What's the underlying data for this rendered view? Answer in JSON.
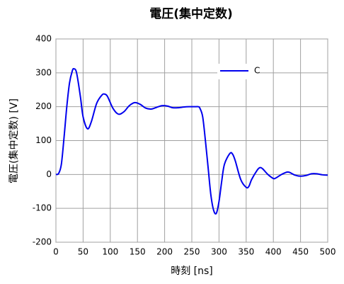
{
  "chart_data": {
    "type": "line",
    "title": "電圧(集中定数)",
    "x_label": "時刻 [ns]",
    "y_label": "電圧(集中定数) [V]",
    "x": [
      0,
      5,
      10,
      15,
      20,
      25,
      30,
      33,
      38,
      45,
      50,
      58,
      65,
      75,
      85,
      90,
      95,
      105,
      115,
      125,
      135,
      145,
      155,
      165,
      175,
      185,
      195,
      205,
      215,
      225,
      235,
      245,
      255,
      262,
      265,
      270,
      275,
      280,
      285,
      290,
      295,
      300,
      305,
      310,
      320,
      325,
      330,
      340,
      350,
      355,
      360,
      370,
      375,
      380,
      390,
      400,
      405,
      415,
      425,
      430,
      440,
      450,
      460,
      470,
      480,
      490,
      500
    ],
    "series": [
      {
        "name": "C",
        "color": "#0000ee",
        "values": [
          0,
          3,
          30,
          110,
          200,
          270,
          305,
          312,
          300,
          230,
          170,
          135,
          155,
          210,
          235,
          237,
          230,
          195,
          178,
          185,
          203,
          212,
          207,
          196,
          193,
          198,
          203,
          202,
          197,
          197,
          199,
          200,
          200,
          200,
          195,
          170,
          100,
          20,
          -60,
          -105,
          -115,
          -80,
          -20,
          30,
          62,
          60,
          40,
          -15,
          -38,
          -35,
          -15,
          12,
          20,
          17,
          0,
          -12,
          -10,
          0,
          7,
          6,
          -2,
          -5,
          -3,
          2,
          2,
          -1,
          -2
        ]
      }
    ],
    "xlim": [
      0,
      500
    ],
    "xticks": [
      0,
      50,
      100,
      150,
      200,
      250,
      300,
      350,
      400,
      450,
      500
    ],
    "ylim": [
      -200,
      400
    ],
    "yticks": [
      -200,
      -100,
      0,
      100,
      200,
      300,
      400
    ],
    "grid": true,
    "legend": "upper right"
  }
}
